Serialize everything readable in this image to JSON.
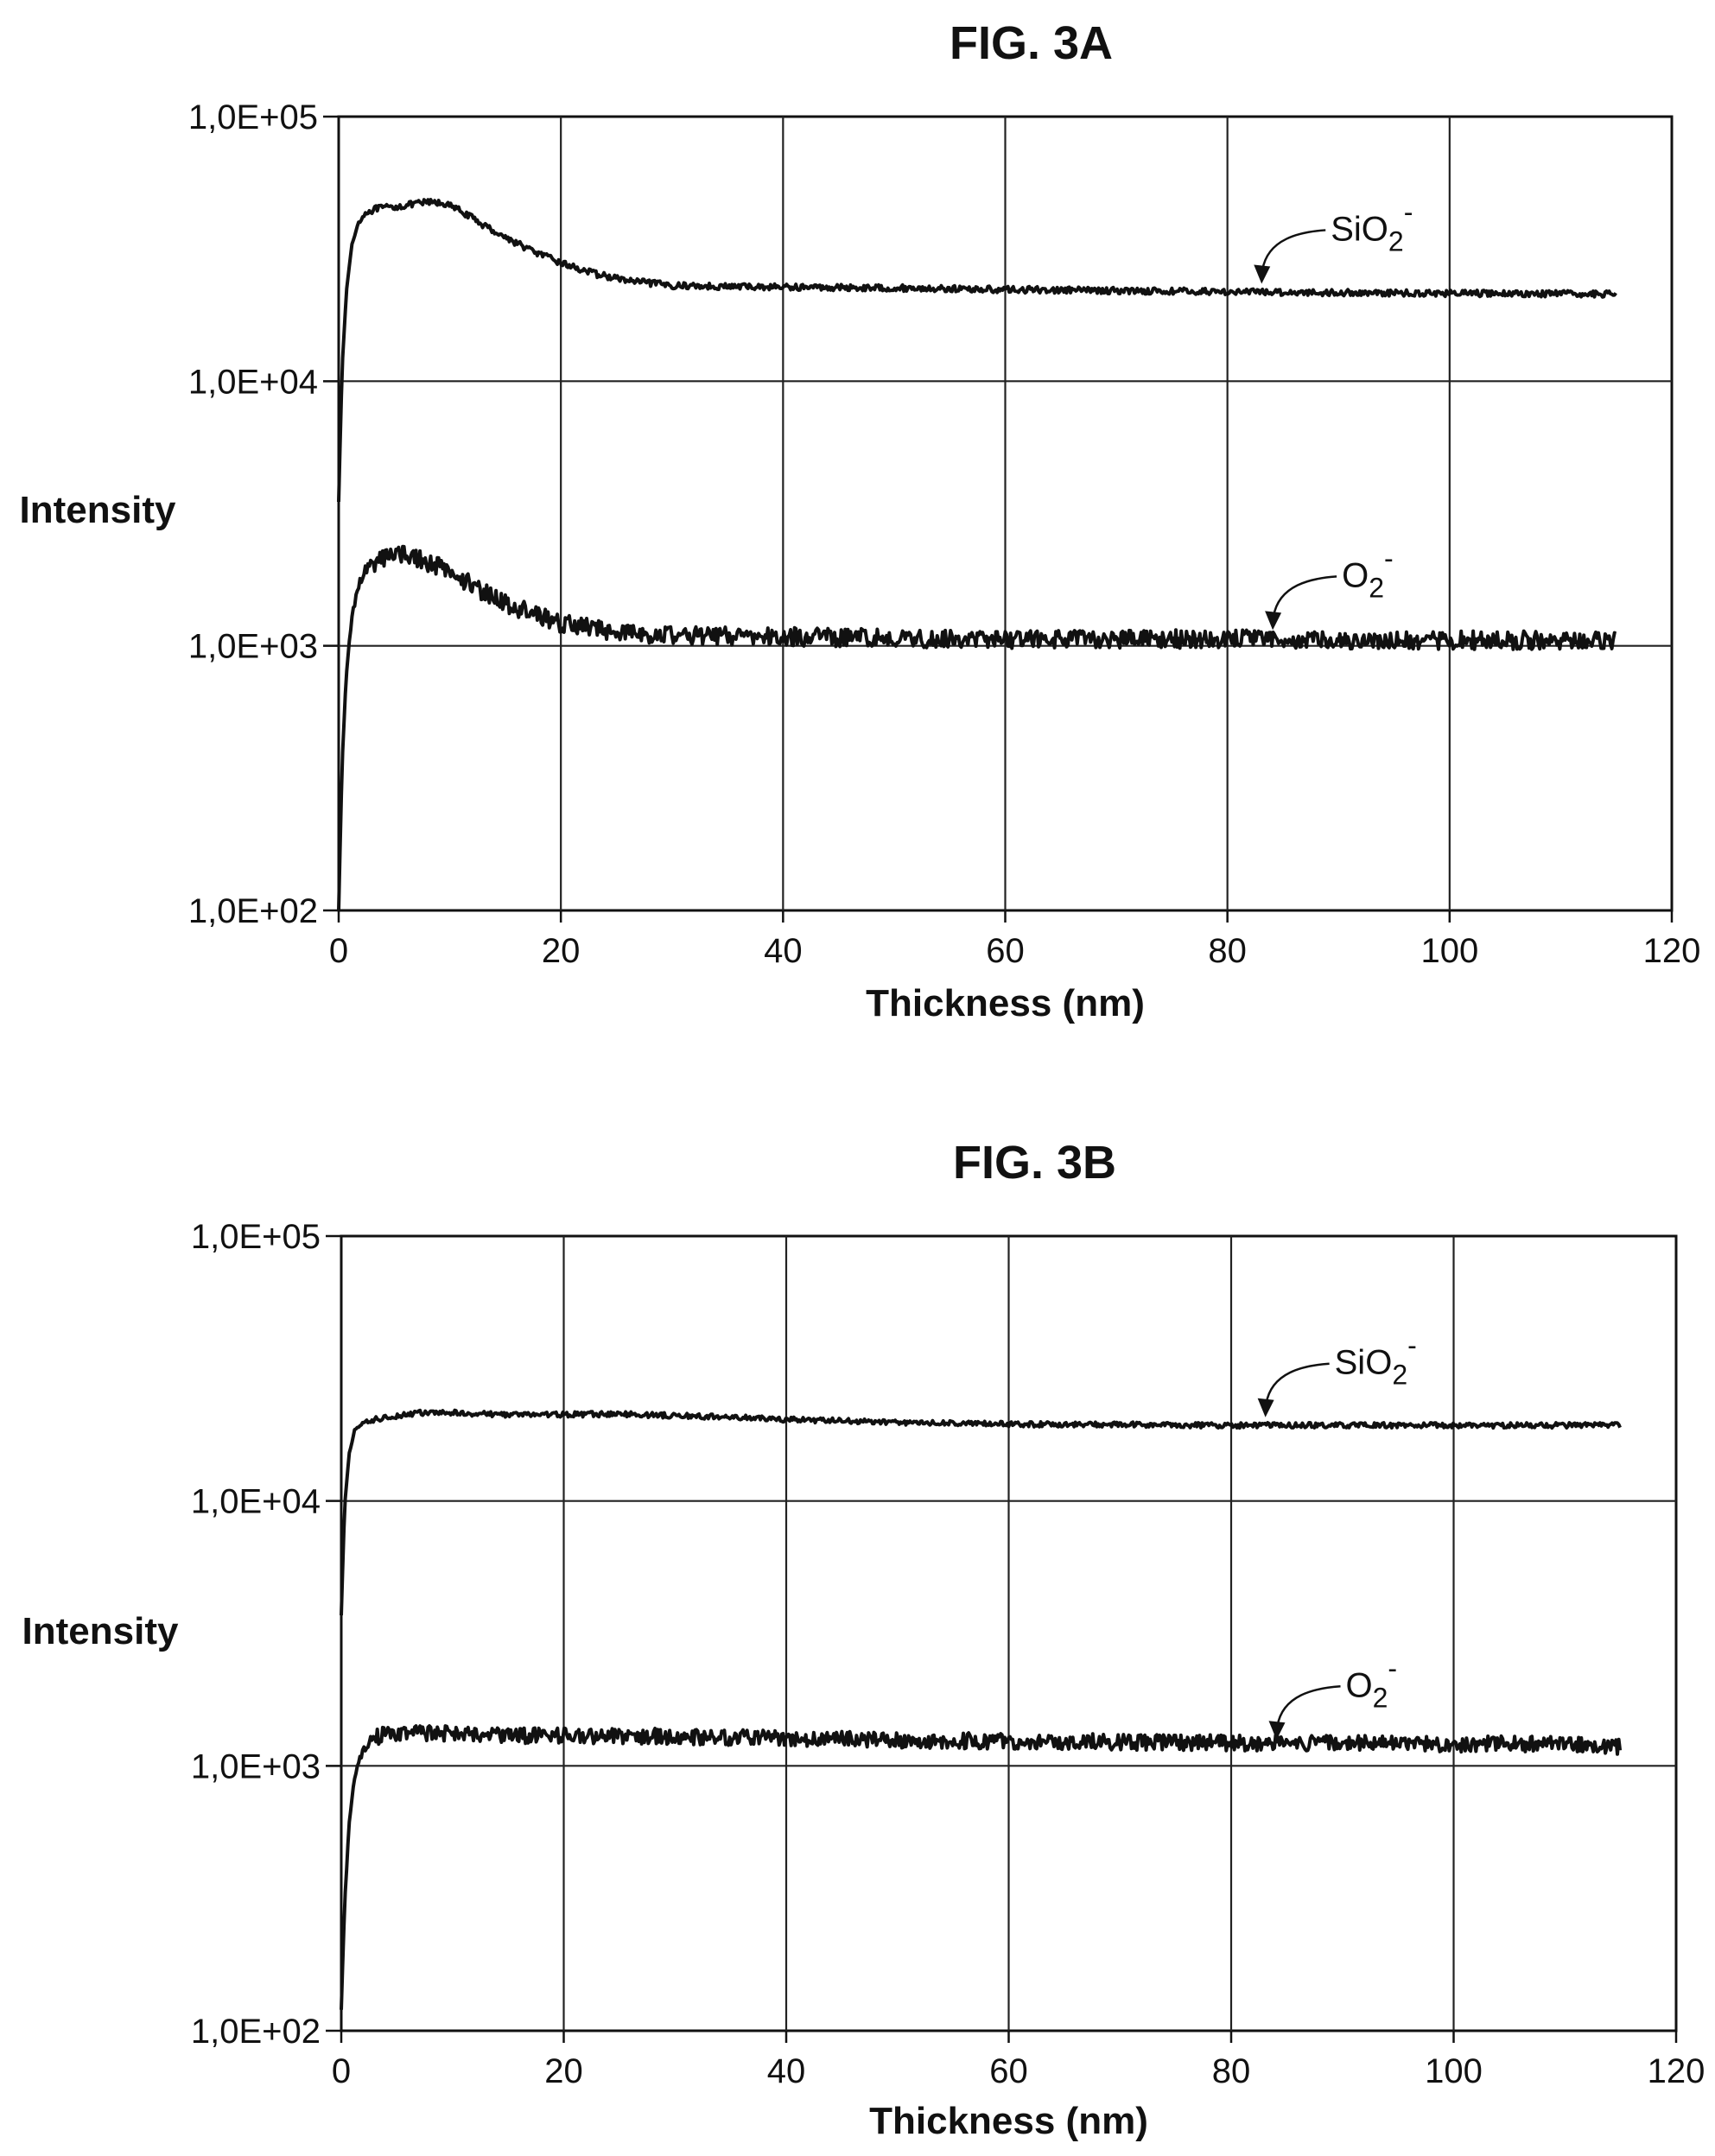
{
  "chart_data": [
    {
      "type": "line",
      "title": "FIG. 3A",
      "xlabel": "Thickness (nm)",
      "ylabel": "Intensity",
      "xlim": [
        0,
        120
      ],
      "ylim": [
        100,
        100000
      ],
      "yscale": "log",
      "grid": true,
      "x_ticks": [
        0,
        20,
        40,
        60,
        80,
        100,
        120
      ],
      "x_tick_labels": [
        "0",
        "20",
        "40",
        "60",
        "80",
        "100",
        "120"
      ],
      "y_ticks": [
        100,
        1000,
        10000,
        100000
      ],
      "y_tick_labels": [
        "1,0E+02",
        "1,0E+03",
        "1,0E+04",
        "1,0E+05"
      ],
      "series": [
        {
          "name": "SiO2-",
          "label_main": "SiO",
          "label_sub": "2",
          "label_sup": "-",
          "label_at": [
            83,
            22000
          ],
          "noise": 0.012,
          "x": [
            0,
            0.3,
            0.7,
            1.2,
            1.8,
            2.5,
            3.5,
            5,
            6.5,
            8,
            9.5,
            11,
            13,
            15,
            17.5,
            20,
            23,
            26,
            30,
            35,
            40,
            50,
            60,
            70,
            80,
            90,
            100,
            110,
            115
          ],
          "y": [
            3500,
            11000,
            22000,
            33000,
            40000,
            43500,
            45000,
            45500,
            46500,
            47500,
            47000,
            44000,
            39000,
            35000,
            31000,
            28000,
            25500,
            24000,
            23000,
            22800,
            22700,
            22500,
            22200,
            22000,
            21800,
            21600,
            21500,
            21400,
            21300
          ]
        },
        {
          "name": "O2-",
          "label_main": "O",
          "label_sub": "2",
          "label_sup": "-",
          "label_at": [
            84,
            1080
          ],
          "noise": 0.035,
          "x": [
            0,
            0.3,
            0.7,
            1.2,
            1.8,
            2.5,
            3.5,
            4.5,
            5.5,
            7,
            9,
            11,
            13,
            15,
            17.5,
            20,
            23,
            26,
            30,
            35,
            40,
            50,
            60,
            70,
            80,
            90,
            100,
            110,
            115
          ],
          "y": [
            100,
            350,
            800,
            1300,
            1700,
            1950,
            2100,
            2200,
            2250,
            2150,
            2000,
            1800,
            1600,
            1450,
            1320,
            1220,
            1160,
            1120,
            1100,
            1090,
            1080,
            1070,
            1060,
            1060,
            1060,
            1050,
            1050,
            1050,
            1050
          ]
        }
      ]
    },
    {
      "type": "line",
      "title": "FIG. 3B",
      "xlabel": "Thickness (nm)",
      "ylabel": "Intensity",
      "xlim": [
        0,
        120
      ],
      "ylim": [
        100,
        100000
      ],
      "yscale": "log",
      "grid": true,
      "x_ticks": [
        0,
        20,
        40,
        60,
        80,
        100,
        120
      ],
      "x_tick_labels": [
        "0",
        "20",
        "40",
        "60",
        "80",
        "100",
        "120"
      ],
      "y_ticks": [
        100,
        1000,
        10000,
        100000
      ],
      "y_tick_labels": [
        "1,0E+02",
        "1,0E+03",
        "1,0E+04",
        "1,0E+05"
      ],
      "series": [
        {
          "name": "SiO2-",
          "label_main": "SiO",
          "label_sub": "2",
          "label_sup": "-",
          "label_at": [
            83,
            19500
          ],
          "noise": 0.01,
          "x": [
            0,
            0.3,
            0.7,
            1.2,
            1.8,
            2.5,
            3.5,
            5,
            7,
            10,
            15,
            20,
            25,
            30,
            35,
            40,
            50,
            60,
            70,
            80,
            90,
            100,
            110,
            115
          ],
          "y": [
            3700,
            9500,
            15000,
            18500,
            19500,
            20000,
            20500,
            21000,
            21500,
            21500,
            21200,
            21200,
            21300,
            21000,
            20700,
            20300,
            19800,
            19500,
            19400,
            19300,
            19300,
            19300,
            19300,
            19300
          ]
        },
        {
          "name": "O2-",
          "label_main": "O",
          "label_sub": "2",
          "label_sup": "-",
          "label_at": [
            84,
            1180
          ],
          "noise": 0.03,
          "x": [
            0,
            0.3,
            0.7,
            1.2,
            1.8,
            2.5,
            3.5,
            5,
            7,
            10,
            15,
            20,
            25,
            30,
            35,
            40,
            50,
            60,
            70,
            80,
            90,
            100,
            110,
            115
          ],
          "y": [
            120,
            300,
            600,
            900,
            1100,
            1250,
            1300,
            1320,
            1330,
            1320,
            1300,
            1300,
            1300,
            1290,
            1280,
            1270,
            1250,
            1240,
            1230,
            1220,
            1220,
            1210,
            1210,
            1180
          ]
        }
      ]
    }
  ]
}
